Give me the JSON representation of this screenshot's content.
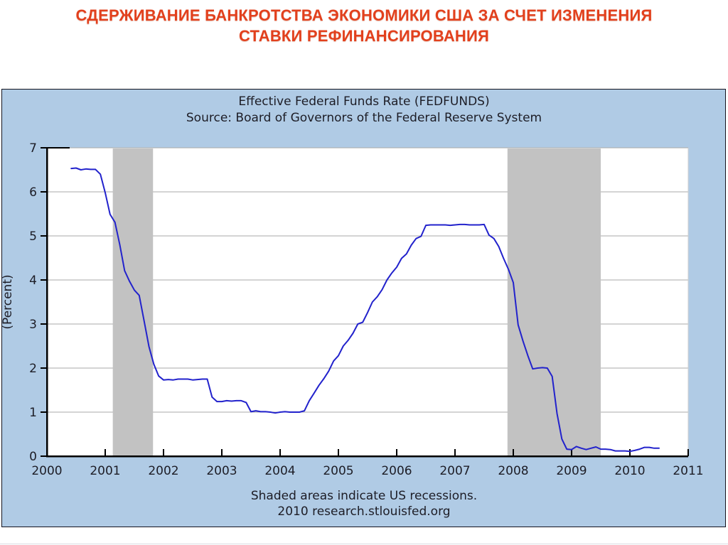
{
  "slide": {
    "title_line1": "СДЕРЖИВАНИЕ БАНКРОТСТВА ЭКОНОМИКИ США ЗА СЧЕТ ИЗМЕНЕНИЯ",
    "title_line2": "СТАВКИ РЕФИНАНСИРОВАНИЯ"
  },
  "colors": {
    "title_red": "#e2401d",
    "panel_bg": "#b0cbe5",
    "panel_border": "#14141f",
    "chart_text": "#1d1d26",
    "plot_bg": "#ffffff",
    "grid": "#a8a8a8",
    "axis": "#000000",
    "recession_band": "#c2c2c2",
    "line": "#2222cc",
    "plot_right_edge": "#cfcfcf"
  },
  "chart_data": {
    "type": "line",
    "title": "Effective Federal Funds Rate (FEDFUNDS)",
    "subtitle": "Source: Board of Governors of the Federal Reserve System",
    "ylabel": "(Percent)",
    "caption_line1": "Shaded areas indicate US recessions.",
    "caption_line2": "2010 research.stlouisfed.org",
    "xlim": [
      2000,
      2011
    ],
    "ylim": [
      0,
      7
    ],
    "x_ticks": [
      2000,
      2001,
      2002,
      2003,
      2004,
      2005,
      2006,
      2007,
      2008,
      2009,
      2010,
      2011
    ],
    "y_ticks": [
      0,
      1,
      2,
      3,
      4,
      5,
      6,
      7
    ],
    "grid": "horizontal",
    "legend": "none",
    "recession_bands": [
      [
        2001.13,
        2001.82
      ],
      [
        2007.9,
        2009.5
      ]
    ],
    "series": [
      {
        "name": "FEDFUNDS",
        "frequency": "monthly",
        "start_year": 2000,
        "start_month": 6,
        "values": [
          6.53,
          6.54,
          6.5,
          6.52,
          6.51,
          6.51,
          6.4,
          5.98,
          5.49,
          5.31,
          4.8,
          4.21,
          3.97,
          3.77,
          3.65,
          3.07,
          2.49,
          2.09,
          1.82,
          1.73,
          1.74,
          1.73,
          1.75,
          1.75,
          1.75,
          1.73,
          1.74,
          1.75,
          1.75,
          1.34,
          1.24,
          1.24,
          1.26,
          1.25,
          1.26,
          1.26,
          1.22,
          1.01,
          1.03,
          1.01,
          1.01,
          1.0,
          0.98,
          1.0,
          1.01,
          1.0,
          1.0,
          1.0,
          1.03,
          1.26,
          1.43,
          1.61,
          1.76,
          1.93,
          2.16,
          2.28,
          2.5,
          2.63,
          2.79,
          3.0,
          3.04,
          3.26,
          3.5,
          3.62,
          3.78,
          4.0,
          4.16,
          4.29,
          4.49,
          4.59,
          4.79,
          4.94,
          4.99,
          5.24,
          5.25,
          5.25,
          5.25,
          5.25,
          5.24,
          5.25,
          5.26,
          5.26,
          5.25,
          5.25,
          5.25,
          5.26,
          5.02,
          4.94,
          4.76,
          4.49,
          4.24,
          3.94,
          2.98,
          2.61,
          2.28,
          1.98,
          2.0,
          2.01,
          2.0,
          1.81,
          0.97,
          0.39,
          0.16,
          0.15,
          0.22,
          0.18,
          0.15,
          0.18,
          0.21,
          0.16,
          0.16,
          0.15,
          0.12,
          0.12,
          0.12,
          0.11,
          0.13,
          0.16,
          0.2,
          0.2,
          0.18,
          0.18
        ]
      }
    ]
  }
}
